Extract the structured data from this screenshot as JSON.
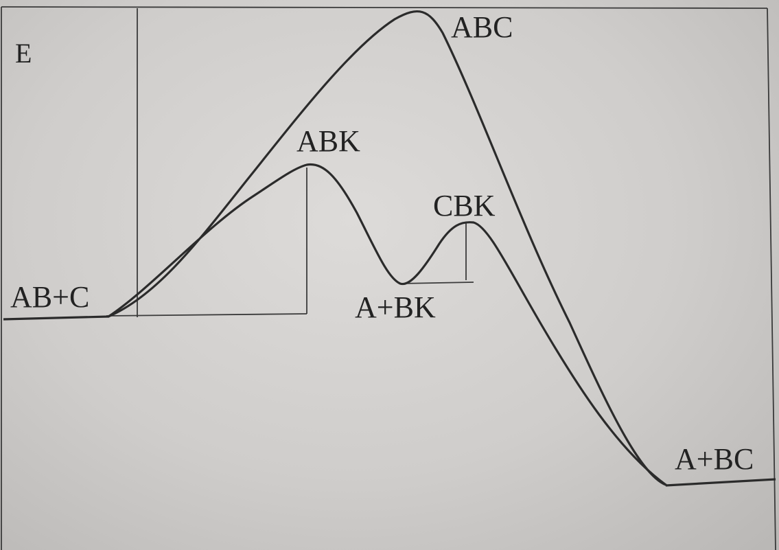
{
  "diagram": {
    "axis_label": "E",
    "labels": {
      "reactants": "AB+C",
      "uncatalyzed_transition_state": "ABC",
      "first_catalytic_complex": "ABK",
      "intermediate": "A+BK",
      "second_catalytic_complex": "CBK",
      "products": "A+BC"
    }
  }
}
